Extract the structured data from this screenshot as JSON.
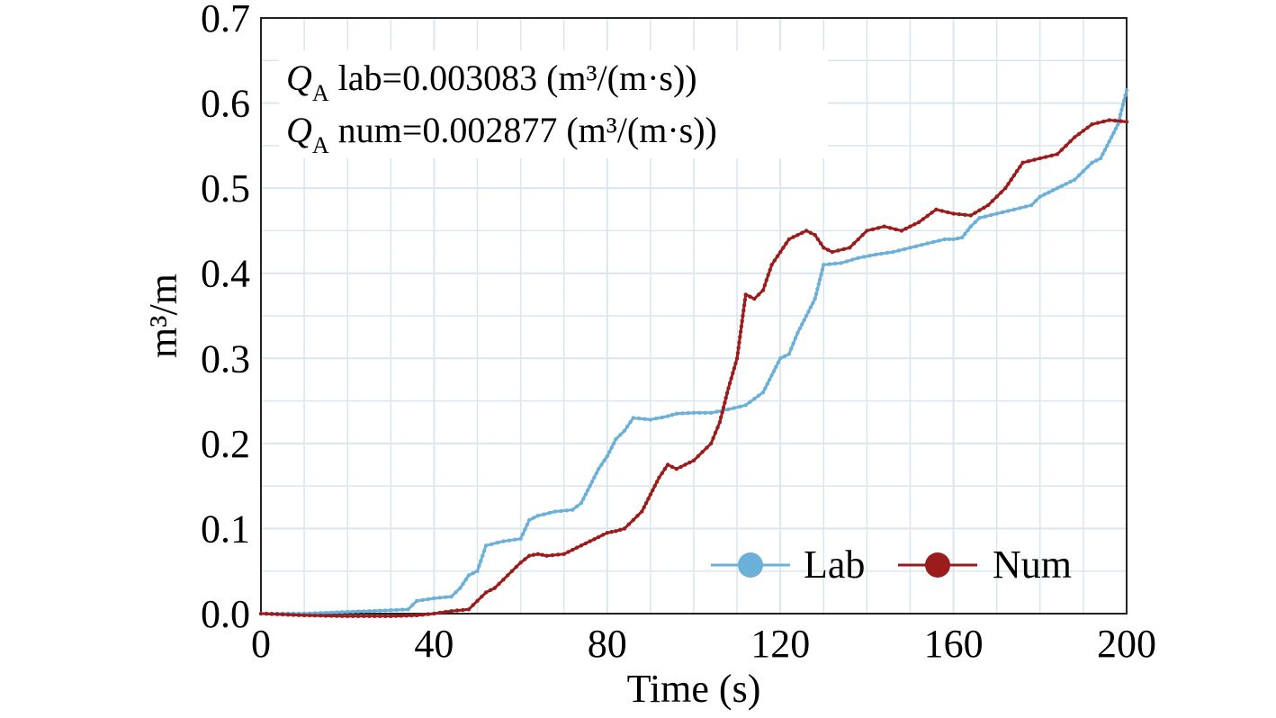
{
  "chart_data": {
    "type": "line",
    "xlabel": "Time (s)",
    "ylabel": "m³/m",
    "xlim": [
      0,
      200
    ],
    "ylim": [
      0,
      0.7
    ],
    "x_ticks": [
      "0",
      "40",
      "80",
      "120",
      "160",
      "200"
    ],
    "y_ticks": [
      "0.0",
      "0.1",
      "0.2",
      "0.3",
      "0.4",
      "0.5",
      "0.6",
      "0.7"
    ],
    "grid": true,
    "legend_position": "bottom-right",
    "annotations": [
      {
        "symbol": "Q",
        "subscript": "A",
        "text": " lab=0.003083 (m³/(m·s))"
      },
      {
        "symbol": "Q",
        "subscript": "A",
        "text": " num=0.002877 (m³/(m·s))"
      }
    ],
    "series": [
      {
        "name": "Lab",
        "color": "#6ab0d8",
        "x": [
          0,
          10,
          20,
          30,
          34,
          36,
          40,
          44,
          46,
          48,
          50,
          52,
          56,
          60,
          62,
          64,
          68,
          72,
          74,
          76,
          78,
          80,
          82,
          84,
          86,
          90,
          94,
          96,
          100,
          104,
          108,
          112,
          116,
          118,
          120,
          122,
          124,
          126,
          128,
          130,
          134,
          138,
          142,
          146,
          150,
          154,
          158,
          160,
          162,
          164,
          166,
          170,
          174,
          178,
          180,
          184,
          188,
          190,
          192,
          194,
          196,
          198,
          200
        ],
        "y": [
          0,
          0,
          0.002,
          0.004,
          0.005,
          0.015,
          0.018,
          0.02,
          0.03,
          0.045,
          0.05,
          0.08,
          0.085,
          0.088,
          0.11,
          0.115,
          0.12,
          0.122,
          0.13,
          0.15,
          0.17,
          0.185,
          0.205,
          0.215,
          0.23,
          0.228,
          0.232,
          0.235,
          0.236,
          0.236,
          0.24,
          0.245,
          0.26,
          0.28,
          0.3,
          0.305,
          0.33,
          0.35,
          0.37,
          0.41,
          0.412,
          0.418,
          0.422,
          0.425,
          0.43,
          0.435,
          0.44,
          0.44,
          0.442,
          0.455,
          0.465,
          0.47,
          0.475,
          0.48,
          0.49,
          0.5,
          0.51,
          0.52,
          0.53,
          0.535,
          0.555,
          0.575,
          0.615
        ]
      },
      {
        "name": "Num",
        "color": "#9b1c1c",
        "x": [
          0,
          10,
          20,
          30,
          36,
          40,
          44,
          48,
          50,
          52,
          54,
          56,
          58,
          60,
          62,
          64,
          66,
          70,
          74,
          78,
          80,
          82,
          84,
          86,
          88,
          90,
          92,
          94,
          96,
          100,
          102,
          104,
          106,
          108,
          110,
          112,
          114,
          116,
          118,
          120,
          122,
          124,
          126,
          128,
          130,
          132,
          136,
          140,
          144,
          148,
          152,
          156,
          160,
          164,
          168,
          170,
          172,
          176,
          180,
          184,
          188,
          192,
          196,
          200
        ],
        "y": [
          0,
          -0.002,
          -0.003,
          -0.003,
          -0.002,
          0,
          0.003,
          0.005,
          0.015,
          0.025,
          0.03,
          0.04,
          0.05,
          0.06,
          0.068,
          0.07,
          0.068,
          0.07,
          0.08,
          0.09,
          0.095,
          0.097,
          0.1,
          0.11,
          0.12,
          0.14,
          0.16,
          0.175,
          0.17,
          0.18,
          0.19,
          0.2,
          0.225,
          0.265,
          0.3,
          0.375,
          0.37,
          0.38,
          0.41,
          0.425,
          0.44,
          0.445,
          0.45,
          0.445,
          0.43,
          0.425,
          0.43,
          0.45,
          0.455,
          0.45,
          0.46,
          0.475,
          0.47,
          0.468,
          0.48,
          0.49,
          0.5,
          0.53,
          0.535,
          0.54,
          0.56,
          0.575,
          0.58,
          0.578
        ]
      }
    ]
  }
}
